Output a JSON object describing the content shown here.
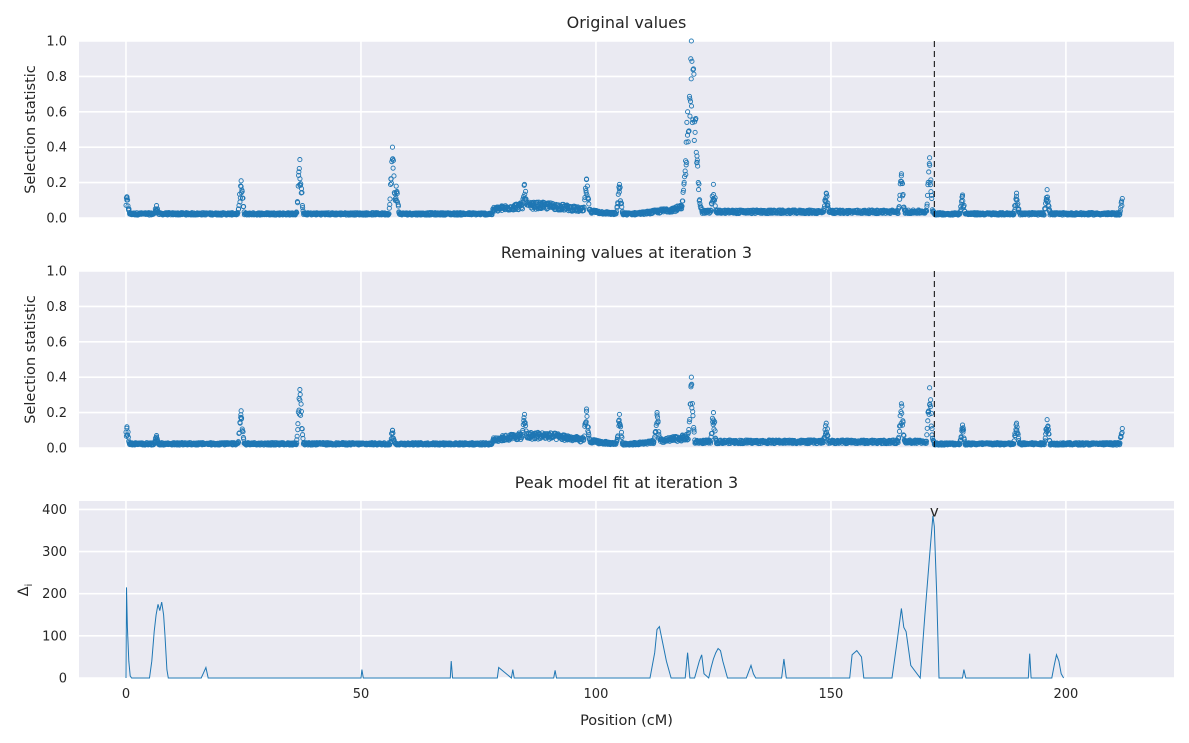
{
  "chart_data": [
    {
      "type": "scatter",
      "title": "Original values",
      "xlabel": "",
      "ylabel": "Selection statistic",
      "xlim": [
        -10,
        223
      ],
      "ylim": [
        0,
        1.0
      ],
      "yticks": [
        "0.0",
        "0.2",
        "0.4",
        "0.6",
        "0.8",
        "1.0"
      ],
      "xticks": [
        0,
        50,
        100,
        150,
        200
      ],
      "grid": true,
      "marker": "hollow-circle",
      "color": "#1f77b4",
      "marker_line": {
        "x": 172
      },
      "x_range": [
        0,
        212
      ],
      "baseline": 0.03,
      "peaks": [
        {
          "x": 0.2,
          "y": 0.12
        },
        {
          "x": 6.5,
          "y": 0.07
        },
        {
          "x": 24.5,
          "y": 0.21
        },
        {
          "x": 37.0,
          "y": 0.33
        },
        {
          "x": 56.7,
          "y": 0.4
        },
        {
          "x": 57.5,
          "y": 0.18
        },
        {
          "x": 84.8,
          "y": 0.19
        },
        {
          "x": 98.0,
          "y": 0.22
        },
        {
          "x": 105.0,
          "y": 0.19
        },
        {
          "x": 119.2,
          "y": 0.3
        },
        {
          "x": 120.3,
          "y": 1.0
        },
        {
          "x": 121.5,
          "y": 0.35
        },
        {
          "x": 125.0,
          "y": 0.19
        },
        {
          "x": 149.0,
          "y": 0.14
        },
        {
          "x": 165.0,
          "y": 0.25
        },
        {
          "x": 171.0,
          "y": 0.34
        },
        {
          "x": 178.0,
          "y": 0.13
        },
        {
          "x": 189.5,
          "y": 0.14
        },
        {
          "x": 196.0,
          "y": 0.16
        },
        {
          "x": 212.0,
          "y": 0.11
        }
      ]
    },
    {
      "type": "scatter",
      "title": "Remaining values at iteration 3",
      "xlabel": "",
      "ylabel": "Selection statistic",
      "xlim": [
        -10,
        223
      ],
      "ylim": [
        0,
        1.0
      ],
      "yticks": [
        "0.0",
        "0.2",
        "0.4",
        "0.6",
        "0.8",
        "1.0"
      ],
      "xticks": [
        0,
        50,
        100,
        150,
        200
      ],
      "grid": true,
      "marker": "hollow-circle",
      "color": "#1f77b4",
      "marker_line": {
        "x": 172
      },
      "x_range": [
        0,
        212
      ],
      "baseline": 0.03,
      "peaks": [
        {
          "x": 0.2,
          "y": 0.12
        },
        {
          "x": 6.5,
          "y": 0.07
        },
        {
          "x": 24.5,
          "y": 0.21
        },
        {
          "x": 37.0,
          "y": 0.33
        },
        {
          "x": 56.7,
          "y": 0.1
        },
        {
          "x": 84.8,
          "y": 0.19
        },
        {
          "x": 98.0,
          "y": 0.22
        },
        {
          "x": 105.0,
          "y": 0.19
        },
        {
          "x": 113.0,
          "y": 0.2
        },
        {
          "x": 120.3,
          "y": 0.4
        },
        {
          "x": 125.0,
          "y": 0.2
        },
        {
          "x": 149.0,
          "y": 0.14
        },
        {
          "x": 165.0,
          "y": 0.25
        },
        {
          "x": 171.0,
          "y": 0.34
        },
        {
          "x": 178.0,
          "y": 0.13
        },
        {
          "x": 189.5,
          "y": 0.14
        },
        {
          "x": 196.0,
          "y": 0.16
        },
        {
          "x": 212.0,
          "y": 0.11
        }
      ]
    },
    {
      "type": "line",
      "title": "Peak model fit at iteration 3",
      "xlabel": "Position (cM)",
      "ylabel": "Δ",
      "ylabel_sub": "i",
      "xlim": [
        -10,
        223
      ],
      "ylim": [
        0,
        420
      ],
      "yticks": [
        "0",
        "100",
        "200",
        "300",
        "400"
      ],
      "xticks": [
        "0",
        "50",
        "100",
        "150",
        "200"
      ],
      "grid": true,
      "color": "#1f77b4",
      "annotation": {
        "text": "v",
        "x": 172,
        "y": 395
      },
      "x": [
        0,
        0.1,
        0.3,
        0.6,
        0.9,
        1.2,
        5,
        5.5,
        6,
        6.4,
        6.8,
        7.2,
        7.6,
        8,
        8.3,
        8.7,
        9,
        16,
        16.5,
        17,
        17.5,
        50,
        50.2,
        50.5,
        69,
        69.2,
        69.5,
        79,
        79.3,
        82,
        82.3,
        82.6,
        91,
        91.3,
        91.6,
        111.5,
        112.5,
        113,
        113.5,
        114,
        115,
        116,
        119,
        119.5,
        120,
        121,
        122,
        122.5,
        123,
        124,
        124.5,
        125,
        125.5,
        126,
        126.5,
        127,
        128,
        132,
        133,
        133.5,
        134,
        139.5,
        140,
        140.5,
        154,
        154.5,
        155.5,
        156.5,
        157,
        163,
        164,
        165,
        165.5,
        166,
        167,
        169,
        170,
        171,
        171.7,
        172,
        172.5,
        173,
        178,
        178.3,
        178.7,
        192,
        192.3,
        192.6,
        197,
        197.5,
        198,
        198.5,
        199,
        199.5
      ],
      "y": [
        0,
        215,
        120,
        40,
        5,
        0,
        0,
        40,
        110,
        150,
        175,
        160,
        180,
        150,
        100,
        20,
        0,
        0,
        12,
        25,
        0,
        0,
        20,
        0,
        0,
        40,
        0,
        0,
        25,
        0,
        20,
        0,
        0,
        18,
        0,
        0,
        60,
        115,
        122,
        95,
        40,
        0,
        0,
        60,
        0,
        0,
        40,
        55,
        10,
        0,
        25,
        45,
        60,
        70,
        65,
        40,
        0,
        0,
        30,
        10,
        0,
        0,
        45,
        0,
        0,
        55,
        65,
        50,
        0,
        0,
        80,
        165,
        120,
        110,
        30,
        0,
        150,
        290,
        385,
        360,
        200,
        0,
        0,
        20,
        0,
        0,
        58,
        0,
        0,
        30,
        55,
        40,
        10,
        0
      ]
    }
  ]
}
